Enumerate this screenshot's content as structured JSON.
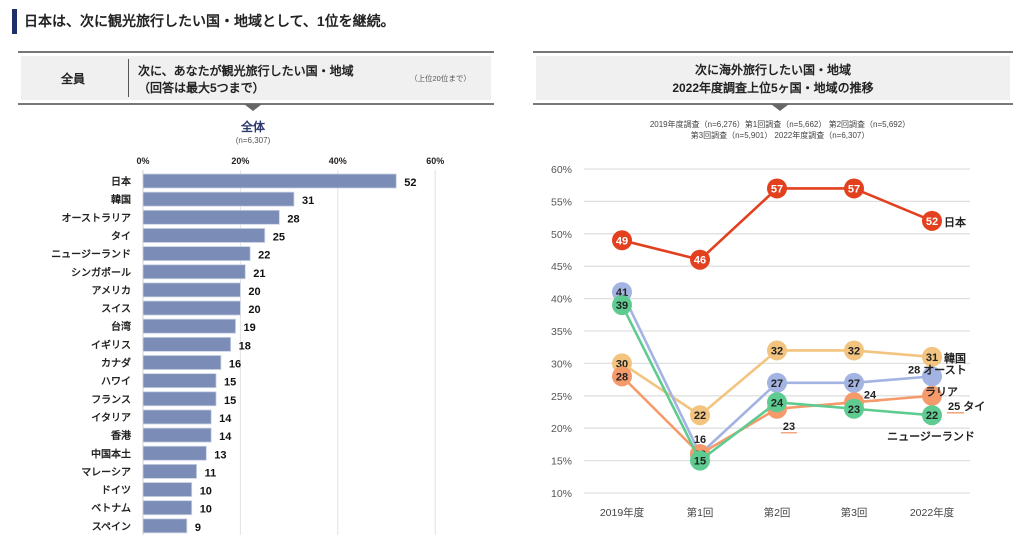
{
  "page": {
    "headline": "日本は、次に観光旅行したい国・地域として、1位を継続。"
  },
  "left_panel": {
    "header_label": "全員",
    "question_line1": "次に、あなたが観光旅行したい国・地域",
    "question_line2": "（回答は最大5つまで）",
    "note": "（上位20位まで）"
  },
  "right_panel": {
    "title_line1": "次に海外旅行したい国・地域",
    "title_line2": "2022年度調査上位5ヶ国・地域の推移",
    "survey_note_line1": "2019年度調査（n=6,276）第1回調査（n=5,662） 第2回調査（n=5,692）",
    "survey_note_line2": "第3回調査（n=5,901） 2022年度調査（n=6,307）"
  },
  "chart_data": [
    {
      "type": "bar",
      "orientation": "horizontal",
      "title": "全体",
      "subtitle": "(n=6,307)",
      "xlabel": "",
      "ylabel": "",
      "xlim": [
        0,
        60
      ],
      "xticks": [
        0,
        20,
        40,
        60
      ],
      "xtick_labels": [
        "0%",
        "20%",
        "40%",
        "60%"
      ],
      "grid": true,
      "bar_color": "#7b8db7",
      "categories": [
        "日本",
        "韓国",
        "オーストラリア",
        "タイ",
        "ニュージーランド",
        "シンガポール",
        "アメリカ",
        "スイス",
        "台湾",
        "イギリス",
        "カナダ",
        "ハワイ",
        "フランス",
        "イタリア",
        "香港",
        "中国本土",
        "マレーシア",
        "ドイツ",
        "ベトナム",
        "スペイン"
      ],
      "values": [
        52,
        31,
        28,
        25,
        22,
        21,
        20,
        20,
        19,
        18,
        16,
        15,
        15,
        14,
        14,
        13,
        11,
        10,
        10,
        9
      ]
    },
    {
      "type": "line",
      "title": "次に海外旅行したい国・地域 2022年度調査上位5ヶ国・地域の推移",
      "x": [
        "2019年度",
        "第1回",
        "第2回",
        "第3回",
        "2022年度"
      ],
      "ylim": [
        10,
        60
      ],
      "yticks": [
        10,
        15,
        20,
        25,
        30,
        35,
        40,
        45,
        50,
        55,
        60
      ],
      "ytick_labels": [
        "10%",
        "15%",
        "20%",
        "25%",
        "30%",
        "35%",
        "40%",
        "45%",
        "50%",
        "55%",
        "60%"
      ],
      "grid": true,
      "legend": "inline-right",
      "series": [
        {
          "name": "韓国",
          "color": "#f2c47f",
          "text_color": "#222222",
          "values": [
            30,
            22,
            32,
            32,
            31
          ]
        },
        {
          "name": "オーストラリア",
          "color": "#a3b4e3",
          "text_color": "#222222",
          "values": [
            41,
            16,
            27,
            27,
            28
          ]
        },
        {
          "name": "タイ",
          "color": "#f59a6b",
          "text_color": "#222222",
          "values": [
            28,
            16,
            23,
            24,
            25
          ]
        },
        {
          "name": "ニュージーランド",
          "color": "#5ecb90",
          "text_color": "#222222",
          "values": [
            39,
            15,
            24,
            23,
            22
          ]
        },
        {
          "name": "日本",
          "color": "#e2401f",
          "text_color": "#ffffff",
          "values": [
            49,
            46,
            57,
            57,
            52
          ]
        }
      ]
    }
  ]
}
